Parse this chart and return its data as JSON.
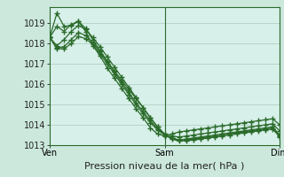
{
  "title": "",
  "xlabel": "Pression niveau de la mer( hPa )",
  "ylabel": "",
  "background_color": "#cce8dd",
  "plot_bg_color": "#d8f0ea",
  "grid_color": "#aaccbb",
  "line_color": "#2a6b2a",
  "marker_color": "#2a6b2a",
  "ylim": [
    1013,
    1019.8
  ],
  "yticks": [
    1013,
    1014,
    1015,
    1016,
    1017,
    1018,
    1019
  ],
  "xtick_labels": [
    "Ven",
    "Sam",
    "Dim"
  ],
  "xtick_positions": [
    0,
    16,
    32
  ],
  "xlabel_fontsize": 8,
  "ytick_fontsize": 7,
  "xtick_fontsize": 7,
  "series": [
    [
      1018.3,
      1019.5,
      1018.85,
      1018.9,
      1019.1,
      1018.6,
      1017.9,
      1017.4,
      1016.8,
      1016.3,
      1015.8,
      1015.3,
      1014.8,
      1014.35,
      1013.85,
      1013.55,
      1013.45,
      1013.55,
      1013.65,
      1013.7,
      1013.75,
      1013.8,
      1013.85,
      1013.9,
      1013.95,
      1014.0,
      1014.05,
      1014.1,
      1014.15,
      1014.2,
      1014.25,
      1014.3,
      1014.0
    ],
    [
      1018.3,
      1018.85,
      1018.6,
      1018.95,
      1019.1,
      1018.75,
      1018.2,
      1017.65,
      1017.15,
      1016.65,
      1016.2,
      1015.75,
      1015.3,
      1014.85,
      1014.35,
      1013.9,
      1013.55,
      1013.45,
      1013.4,
      1013.45,
      1013.5,
      1013.55,
      1013.6,
      1013.65,
      1013.7,
      1013.75,
      1013.8,
      1013.85,
      1013.9,
      1013.95,
      1014.0,
      1014.05,
      1013.7
    ],
    [
      1018.3,
      1017.9,
      1018.2,
      1018.6,
      1018.9,
      1018.7,
      1018.3,
      1017.85,
      1017.35,
      1016.85,
      1016.35,
      1015.85,
      1015.35,
      1014.85,
      1014.35,
      1013.9,
      1013.5,
      1013.35,
      1013.25,
      1013.3,
      1013.35,
      1013.4,
      1013.45,
      1013.5,
      1013.55,
      1013.6,
      1013.65,
      1013.7,
      1013.75,
      1013.8,
      1013.85,
      1013.9,
      1013.5
    ],
    [
      1018.3,
      1017.8,
      1017.85,
      1018.2,
      1018.55,
      1018.4,
      1018.05,
      1017.6,
      1017.1,
      1016.6,
      1016.1,
      1015.6,
      1015.1,
      1014.65,
      1014.2,
      1013.8,
      1013.5,
      1013.35,
      1013.25,
      1013.28,
      1013.3,
      1013.35,
      1013.4,
      1013.45,
      1013.5,
      1013.55,
      1013.6,
      1013.65,
      1013.7,
      1013.75,
      1013.8,
      1013.85,
      1013.45
    ],
    [
      1018.3,
      1017.75,
      1017.75,
      1018.0,
      1018.35,
      1018.25,
      1017.95,
      1017.5,
      1017.0,
      1016.5,
      1016.0,
      1015.5,
      1015.0,
      1014.55,
      1014.1,
      1013.75,
      1013.5,
      1013.3,
      1013.2,
      1013.22,
      1013.25,
      1013.3,
      1013.35,
      1013.4,
      1013.45,
      1013.5,
      1013.55,
      1013.6,
      1013.65,
      1013.7,
      1013.75,
      1013.8,
      1013.4
    ]
  ],
  "x_total": 32,
  "vlines": [
    16,
    32
  ]
}
